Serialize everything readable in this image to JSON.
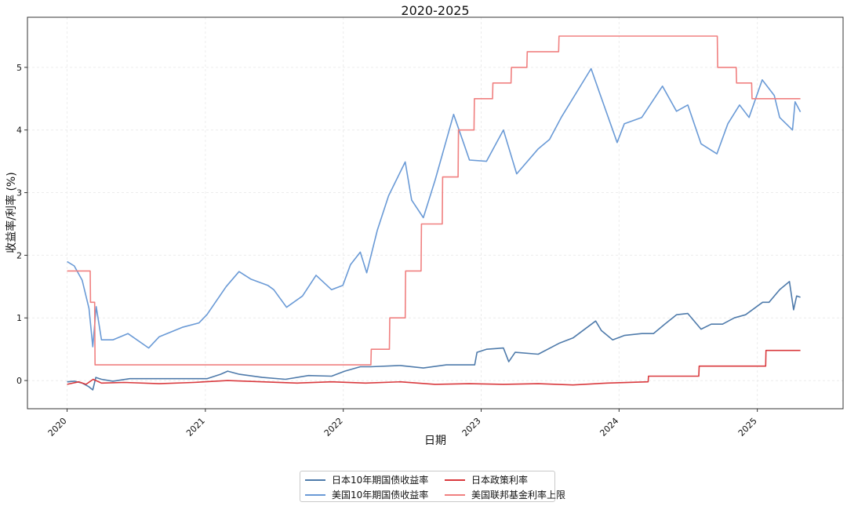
{
  "chart_data": {
    "type": "line",
    "title": "2020-2025",
    "xlabel": "日期",
    "ylabel": "收益率/利率 (%)",
    "x_ticks": [
      "2020",
      "2021",
      "2022",
      "2023",
      "2024",
      "2025"
    ],
    "y_ticks": [
      "0",
      "1",
      "2",
      "3",
      "4",
      "5"
    ],
    "xlim": [
      "2019-09-18",
      "2025-08-16"
    ],
    "ylim": [
      -0.45,
      5.8
    ],
    "grid": true,
    "legend_position": "bottom-center",
    "series": [
      {
        "name": "日本10年期国债收益率",
        "color": "#4f7bab",
        "points": [
          [
            "2020-01-01",
            -0.02
          ],
          [
            "2020-01-20",
            -0.01
          ],
          [
            "2020-02-10",
            -0.04
          ],
          [
            "2020-02-28",
            -0.1
          ],
          [
            "2020-03-09",
            -0.15
          ],
          [
            "2020-03-17",
            0.05
          ],
          [
            "2020-04-01",
            0.02
          ],
          [
            "2020-05-01",
            -0.01
          ],
          [
            "2020-06-15",
            0.03
          ],
          [
            "2020-08-01",
            0.03
          ],
          [
            "2020-10-01",
            0.03
          ],
          [
            "2020-12-01",
            0.03
          ],
          [
            "2021-01-05",
            0.03
          ],
          [
            "2021-02-10",
            0.1
          ],
          [
            "2021-03-01",
            0.15
          ],
          [
            "2021-04-01",
            0.1
          ],
          [
            "2021-06-01",
            0.05
          ],
          [
            "2021-08-01",
            0.02
          ],
          [
            "2021-10-01",
            0.08
          ],
          [
            "2021-12-01",
            0.07
          ],
          [
            "2022-01-05",
            0.15
          ],
          [
            "2022-02-15",
            0.22
          ],
          [
            "2022-03-15",
            0.22
          ],
          [
            "2022-06-01",
            0.24
          ],
          [
            "2022-08-01",
            0.2
          ],
          [
            "2022-10-01",
            0.25
          ],
          [
            "2022-12-15",
            0.25
          ],
          [
            "2022-12-21",
            0.45
          ],
          [
            "2023-01-15",
            0.5
          ],
          [
            "2023-03-01",
            0.52
          ],
          [
            "2023-03-15",
            0.3
          ],
          [
            "2023-04-01",
            0.45
          ],
          [
            "2023-06-01",
            0.42
          ],
          [
            "2023-07-28",
            0.6
          ],
          [
            "2023-09-01",
            0.68
          ],
          [
            "2023-10-31",
            0.95
          ],
          [
            "2023-11-15",
            0.8
          ],
          [
            "2023-12-15",
            0.65
          ],
          [
            "2024-01-15",
            0.72
          ],
          [
            "2024-03-01",
            0.75
          ],
          [
            "2024-04-01",
            0.75
          ],
          [
            "2024-05-01",
            0.9
          ],
          [
            "2024-06-01",
            1.05
          ],
          [
            "2024-07-01",
            1.07
          ],
          [
            "2024-08-05",
            0.82
          ],
          [
            "2024-09-01",
            0.9
          ],
          [
            "2024-10-01",
            0.9
          ],
          [
            "2024-11-01",
            1.0
          ],
          [
            "2024-12-01",
            1.05
          ],
          [
            "2025-01-15",
            1.25
          ],
          [
            "2025-02-01",
            1.25
          ],
          [
            "2025-03-01",
            1.45
          ],
          [
            "2025-03-27",
            1.58
          ],
          [
            "2025-04-07",
            1.13
          ],
          [
            "2025-04-15",
            1.35
          ],
          [
            "2025-04-25",
            1.33
          ]
        ]
      },
      {
        "name": "美国10年期国债收益率",
        "color": "#6a9ad6",
        "points": [
          [
            "2020-01-01",
            1.9
          ],
          [
            "2020-01-20",
            1.83
          ],
          [
            "2020-02-10",
            1.6
          ],
          [
            "2020-02-28",
            1.15
          ],
          [
            "2020-03-09",
            0.54
          ],
          [
            "2020-03-18",
            1.18
          ],
          [
            "2020-04-01",
            0.65
          ],
          [
            "2020-05-01",
            0.65
          ],
          [
            "2020-06-10",
            0.75
          ],
          [
            "2020-08-04",
            0.52
          ],
          [
            "2020-09-01",
            0.7
          ],
          [
            "2020-11-01",
            0.85
          ],
          [
            "2020-12-15",
            0.92
          ],
          [
            "2021-01-05",
            1.05
          ],
          [
            "2021-02-25",
            1.5
          ],
          [
            "2021-03-31",
            1.74
          ],
          [
            "2021-05-01",
            1.62
          ],
          [
            "2021-06-15",
            1.52
          ],
          [
            "2021-07-01",
            1.45
          ],
          [
            "2021-08-04",
            1.17
          ],
          [
            "2021-09-15",
            1.35
          ],
          [
            "2021-10-21",
            1.68
          ],
          [
            "2021-12-01",
            1.45
          ],
          [
            "2021-12-31",
            1.52
          ],
          [
            "2022-01-20",
            1.85
          ],
          [
            "2022-02-15",
            2.05
          ],
          [
            "2022-03-04",
            1.72
          ],
          [
            "2022-04-01",
            2.4
          ],
          [
            "2022-05-01",
            2.95
          ],
          [
            "2022-06-14",
            3.49
          ],
          [
            "2022-07-01",
            2.88
          ],
          [
            "2022-08-01",
            2.6
          ],
          [
            "2022-09-01",
            3.2
          ],
          [
            "2022-10-20",
            4.25
          ],
          [
            "2022-11-15",
            3.8
          ],
          [
            "2022-12-01",
            3.52
          ],
          [
            "2023-01-15",
            3.5
          ],
          [
            "2023-03-01",
            4.0
          ],
          [
            "2023-04-05",
            3.3
          ],
          [
            "2023-06-01",
            3.7
          ],
          [
            "2023-07-01",
            3.85
          ],
          [
            "2023-08-01",
            4.2
          ],
          [
            "2023-10-19",
            4.98
          ],
          [
            "2023-11-10",
            4.6
          ],
          [
            "2023-12-27",
            3.8
          ],
          [
            "2024-01-15",
            4.1
          ],
          [
            "2024-03-01",
            4.2
          ],
          [
            "2024-04-25",
            4.7
          ],
          [
            "2024-06-01",
            4.3
          ],
          [
            "2024-07-01",
            4.4
          ],
          [
            "2024-08-05",
            3.78
          ],
          [
            "2024-09-16",
            3.62
          ],
          [
            "2024-10-15",
            4.1
          ],
          [
            "2024-11-15",
            4.4
          ],
          [
            "2024-12-10",
            4.2
          ],
          [
            "2025-01-14",
            4.8
          ],
          [
            "2025-02-15",
            4.55
          ],
          [
            "2025-03-01",
            4.2
          ],
          [
            "2025-04-04",
            4.0
          ],
          [
            "2025-04-11",
            4.45
          ],
          [
            "2025-04-25",
            4.29
          ]
        ]
      },
      {
        "name": "日本政策利率",
        "color": "#d9393d",
        "points": [
          [
            "2020-01-01",
            -0.06
          ],
          [
            "2020-02-01",
            -0.02
          ],
          [
            "2020-02-20",
            -0.06
          ],
          [
            "2020-03-10",
            0.02
          ],
          [
            "2020-04-01",
            -0.04
          ],
          [
            "2020-06-01",
            -0.03
          ],
          [
            "2020-09-01",
            -0.05
          ],
          [
            "2020-12-01",
            -0.03
          ],
          [
            "2021-03-01",
            0.0
          ],
          [
            "2021-06-01",
            -0.02
          ],
          [
            "2021-09-01",
            -0.04
          ],
          [
            "2021-12-01",
            -0.02
          ],
          [
            "2022-03-01",
            -0.04
          ],
          [
            "2022-06-01",
            -0.02
          ],
          [
            "2022-09-01",
            -0.06
          ],
          [
            "2022-12-01",
            -0.05
          ],
          [
            "2023-03-01",
            -0.06
          ],
          [
            "2023-06-01",
            -0.05
          ],
          [
            "2023-09-01",
            -0.07
          ],
          [
            "2023-12-01",
            -0.04
          ],
          [
            "2024-03-18",
            -0.02
          ],
          [
            "2024-03-19",
            0.07
          ],
          [
            "2024-07-30",
            0.07
          ],
          [
            "2024-07-31",
            0.23
          ],
          [
            "2025-01-23",
            0.23
          ],
          [
            "2025-01-24",
            0.48
          ],
          [
            "2025-04-25",
            0.48
          ]
        ]
      },
      {
        "name": "美国联邦基金利率上限",
        "color": "#f08080",
        "points": [
          [
            "2020-01-01",
            1.75
          ],
          [
            "2020-03-02",
            1.75
          ],
          [
            "2020-03-03",
            1.25
          ],
          [
            "2020-03-14",
            1.25
          ],
          [
            "2020-03-15",
            0.25
          ],
          [
            "2022-03-15",
            0.25
          ],
          [
            "2022-03-16",
            0.5
          ],
          [
            "2022-05-03",
            0.5
          ],
          [
            "2022-05-04",
            1.0
          ],
          [
            "2022-06-14",
            1.0
          ],
          [
            "2022-06-15",
            1.75
          ],
          [
            "2022-07-26",
            1.75
          ],
          [
            "2022-07-27",
            2.5
          ],
          [
            "2022-09-20",
            2.5
          ],
          [
            "2022-09-21",
            3.25
          ],
          [
            "2022-11-01",
            3.25
          ],
          [
            "2022-11-02",
            4.0
          ],
          [
            "2022-12-13",
            4.0
          ],
          [
            "2022-12-14",
            4.5
          ],
          [
            "2023-01-31",
            4.5
          ],
          [
            "2023-02-01",
            4.75
          ],
          [
            "2023-03-21",
            4.75
          ],
          [
            "2023-03-22",
            5.0
          ],
          [
            "2023-05-02",
            5.0
          ],
          [
            "2023-05-03",
            5.25
          ],
          [
            "2023-07-25",
            5.25
          ],
          [
            "2023-07-26",
            5.5
          ],
          [
            "2024-09-17",
            5.5
          ],
          [
            "2024-09-18",
            5.0
          ],
          [
            "2024-11-06",
            5.0
          ],
          [
            "2024-11-07",
            4.75
          ],
          [
            "2024-12-17",
            4.75
          ],
          [
            "2024-12-18",
            4.5
          ],
          [
            "2025-04-25",
            4.5
          ]
        ]
      }
    ]
  }
}
